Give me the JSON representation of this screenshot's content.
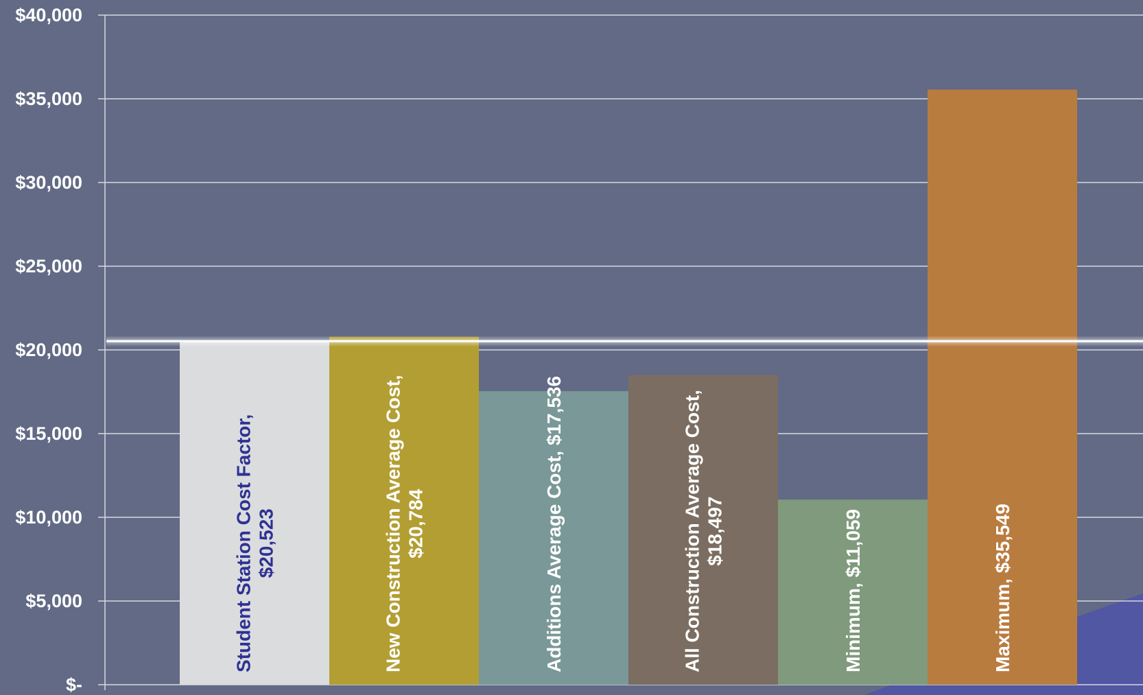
{
  "chart_data": {
    "type": "bar",
    "categories": [
      "Student Station Cost Factor",
      "New Construction Average Cost",
      "Additions Average Cost",
      "All Construction Average Cost",
      "Minimum",
      "Maximum"
    ],
    "values": [
      20523,
      20784,
      17536,
      18497,
      11059,
      35549
    ],
    "ylim": [
      0,
      40000
    ],
    "yticks": [
      0,
      5000,
      10000,
      15000,
      20000,
      25000,
      30000,
      35000,
      40000
    ],
    "ytick_labels": [
      "$-",
      "$5,000",
      "$10,000",
      "$15,000",
      "$20,000",
      "$25,000",
      "$30,000",
      "$35,000",
      "$40,000"
    ],
    "grid": true,
    "reference_line": 20523,
    "bars": [
      {
        "color": "#dbdcde",
        "label_color": "#2e3192",
        "label_lines": [
          "Student  Station Cost Factor,",
          "$20,523"
        ]
      },
      {
        "color": "#b39e33",
        "label_color": "#ffffff",
        "label_lines": [
          "New Construction Average Cost,",
          "$20,784"
        ]
      },
      {
        "color": "#799897",
        "label_color": "#ffffff",
        "label_lines": [
          "Additions Average Cost,  $17,536"
        ]
      },
      {
        "color": "#7b6d61",
        "label_color": "#ffffff",
        "label_lines": [
          "All  Construction Average Cost,",
          "$18,497"
        ]
      },
      {
        "color": "#7f9a7c",
        "label_color": "#ffffff",
        "label_lines": [
          "Minimum,  $11,059"
        ]
      },
      {
        "color": "#b97c3f",
        "label_color": "#ffffff",
        "label_lines": [
          "Maximum,  $35,549"
        ]
      }
    ]
  },
  "colors": {
    "background": "#626a85",
    "gridline": "#d6d9e2",
    "accent_shape": "#5157a3"
  }
}
